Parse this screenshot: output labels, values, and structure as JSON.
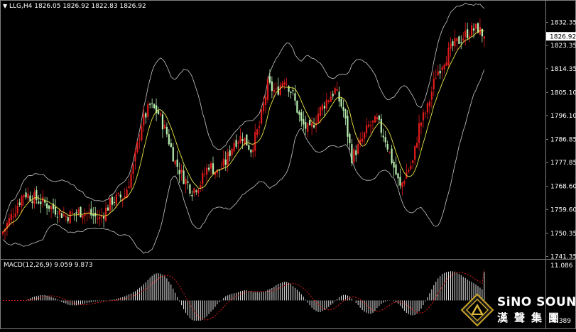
{
  "header": {
    "title": "LLG,H4 1826.05 1826.92 1822.83 1826.92"
  },
  "macd_header": {
    "label": "MACD(12,26,9) 9.059 9.873"
  },
  "price_axis": {
    "ticks": [
      "1832.35",
      "1823.35",
      "1814.35",
      "1805.10",
      "1796.10",
      "1786.85",
      "1777.85",
      "1768.60",
      "1759.60",
      "1750.35",
      "1741.35"
    ],
    "current_price": "1826.92"
  },
  "macd_axis": {
    "ticks": [
      "11.086",
      "-6.389"
    ]
  },
  "logo": {
    "brand": "SiNO SOUND",
    "subtitle": "漢聲集團"
  },
  "colors": {
    "background": "#000000",
    "bull_candle": "#e01b1b",
    "bear_candle": "#b8f0b0",
    "ma_line": "#e8e84a",
    "bollinger": "#c8c8c8",
    "macd_hist": "#e6e6e6",
    "macd_signal": "#e01b1b",
    "axis_text": "#ffffff"
  },
  "chart_data": {
    "type": "candlestick",
    "symbol": "LLG",
    "timeframe": "H4",
    "ylim": [
      1741.35,
      1832.35
    ],
    "macd_ylim": [
      -6.389,
      11.086
    ],
    "indicators": [
      "Bollinger Bands",
      "Moving Average",
      "MACD(12,26,9)"
    ],
    "last": {
      "open": 1826.05,
      "high": 1826.92,
      "low": 1822.83,
      "close": 1826.92
    },
    "macd": {
      "main": 9.059,
      "signal": 9.873
    },
    "anchors": [
      [
        0,
        1751
      ],
      [
        10,
        1766
      ],
      [
        20,
        1762
      ],
      [
        30,
        1757
      ],
      [
        38,
        1759
      ],
      [
        46,
        1756
      ],
      [
        52,
        1763
      ],
      [
        58,
        1765
      ],
      [
        62,
        1776
      ],
      [
        66,
        1793
      ],
      [
        70,
        1800
      ],
      [
        74,
        1797
      ],
      [
        78,
        1789
      ],
      [
        82,
        1778
      ],
      [
        86,
        1772
      ],
      [
        90,
        1767
      ],
      [
        94,
        1770
      ],
      [
        98,
        1777
      ],
      [
        102,
        1774
      ],
      [
        106,
        1778
      ],
      [
        110,
        1786
      ],
      [
        114,
        1788
      ],
      [
        118,
        1783
      ],
      [
        122,
        1792
      ],
      [
        126,
        1808
      ],
      [
        130,
        1805
      ],
      [
        134,
        1811
      ],
      [
        138,
        1804
      ],
      [
        142,
        1793
      ],
      [
        146,
        1790
      ],
      [
        150,
        1797
      ],
      [
        154,
        1802
      ],
      [
        158,
        1806
      ],
      [
        162,
        1798
      ],
      [
        166,
        1780
      ],
      [
        170,
        1785
      ],
      [
        174,
        1792
      ],
      [
        178,
        1794
      ],
      [
        182,
        1787
      ],
      [
        186,
        1776
      ],
      [
        189,
        1768
      ],
      [
        192,
        1774
      ],
      [
        195,
        1778
      ],
      [
        198,
        1792
      ],
      [
        202,
        1799
      ],
      [
        206,
        1812
      ],
      [
        210,
        1818
      ],
      [
        214,
        1823
      ],
      [
        218,
        1826
      ],
      [
        222,
        1829
      ],
      [
        226,
        1830
      ],
      [
        229,
        1826.92
      ]
    ]
  }
}
